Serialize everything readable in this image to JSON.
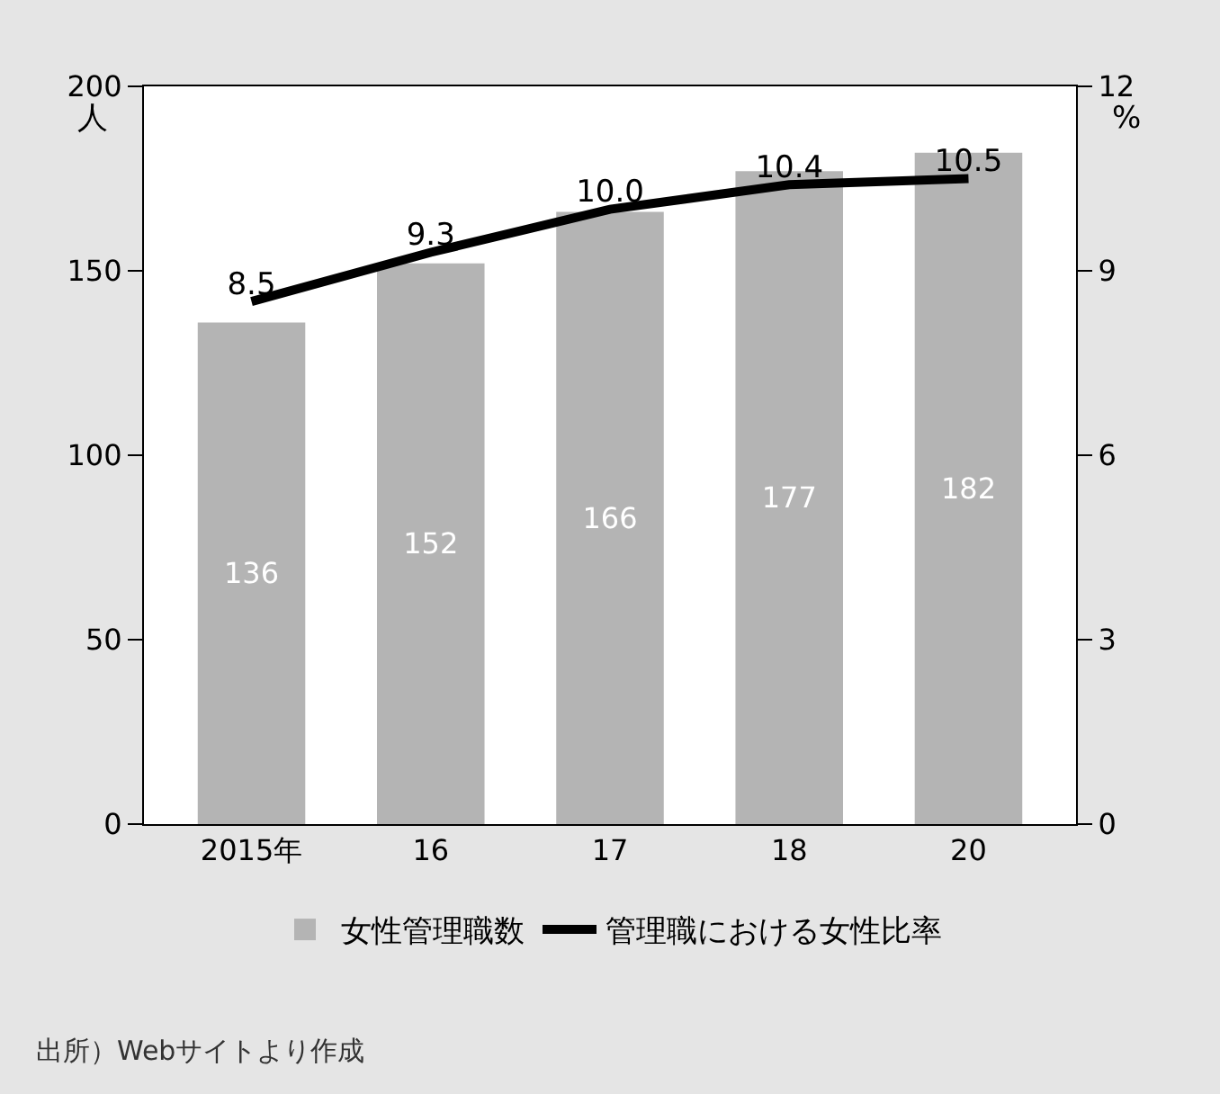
{
  "chart_data": {
    "type": "bar",
    "categories": [
      "2015年",
      "16",
      "17",
      "18",
      "20"
    ],
    "ylabel": "人",
    "y2label": "%",
    "series": [
      {
        "name": "女性管理職数",
        "color": "#b4b4b4",
        "values": [
          136,
          152,
          166,
          177,
          182
        ],
        "value_labels": [
          "136",
          "152",
          "166",
          "177",
          "182"
        ]
      },
      {
        "name": "管理職における女性比率",
        "type": "line",
        "axis": "y2",
        "color": "#000000",
        "values": [
          8.5,
          9.3,
          10.0,
          10.4,
          10.5
        ],
        "value_labels": [
          "8.5",
          "9.3",
          "10.0",
          "10.4",
          "10.5"
        ]
      }
    ],
    "ylim": [
      0,
      200
    ],
    "yticks": [
      0,
      50,
      100,
      150,
      200
    ],
    "y2lim": [
      0,
      12
    ],
    "y2ticks": [
      0,
      3,
      6,
      9,
      12
    ],
    "grid": false,
    "legend": "bottom",
    "marker": "none",
    "line_style": "solid",
    "annotations": [
      "出所）Webサイトより作成"
    ]
  }
}
